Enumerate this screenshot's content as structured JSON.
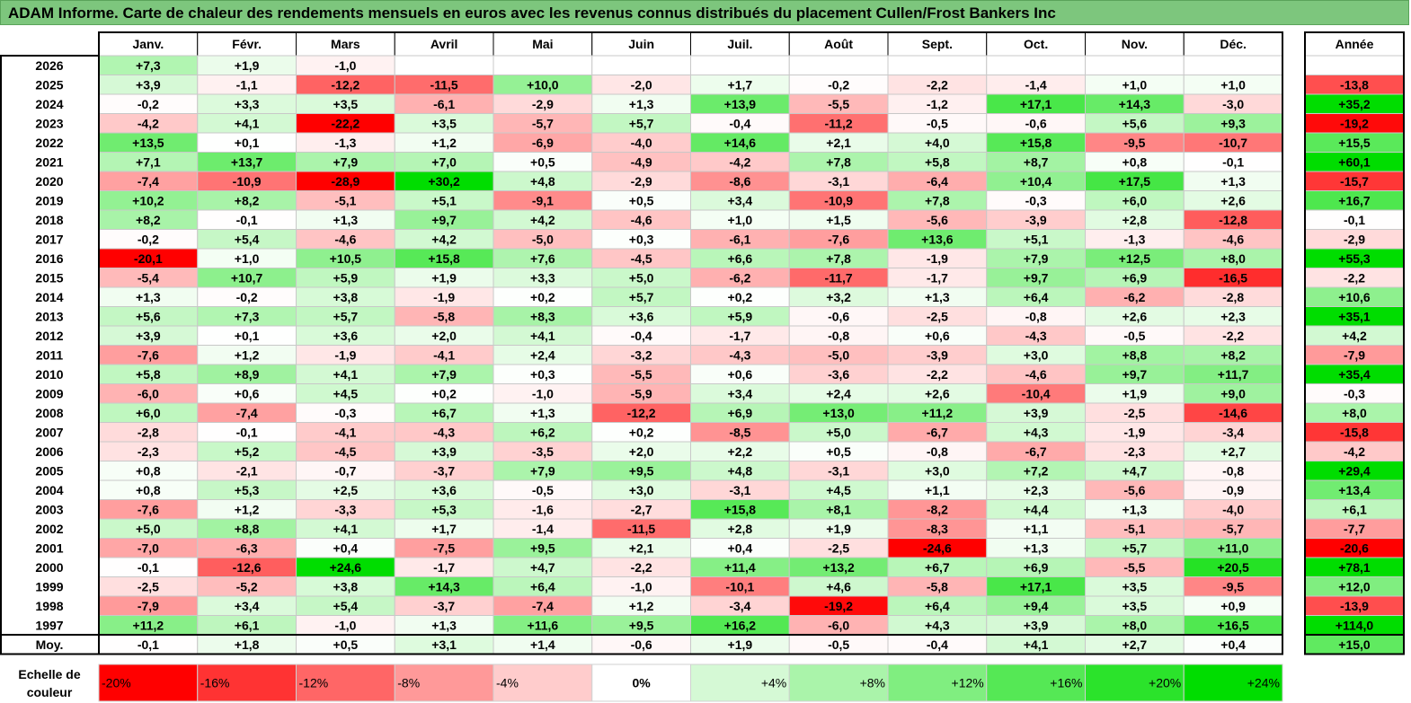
{
  "title": "ADAM Informe. Carte de chaleur des rendements mensuels en euros avec les revenus connus distribués du placement Cullen/Frost Bankers Inc",
  "chart_data": {
    "type": "heatmap",
    "title": "ADAM Informe. Carte de chaleur des rendements mensuels en euros avec les revenus connus distribués du placement Cullen/Frost Bankers Inc",
    "columns": [
      "Janv.",
      "Févr.",
      "Mars",
      "Avril",
      "Mai",
      "Juin",
      "Juil.",
      "Août",
      "Sept.",
      "Oct.",
      "Nov.",
      "Déc."
    ],
    "year_column_label": "Année",
    "rows": [
      {
        "label": "2026",
        "values": [
          7.3,
          1.9,
          -1.0,
          null,
          null,
          null,
          null,
          null,
          null,
          null,
          null,
          null
        ],
        "year": null
      },
      {
        "label": "2025",
        "values": [
          3.9,
          -1.1,
          -12.2,
          -11.5,
          10.0,
          -2.0,
          1.7,
          -0.2,
          -2.2,
          -1.4,
          1.0,
          1.0
        ],
        "year": -13.8
      },
      {
        "label": "2024",
        "values": [
          -0.2,
          3.3,
          3.5,
          -6.1,
          -2.9,
          1.3,
          13.9,
          -5.5,
          -1.2,
          17.1,
          14.3,
          -3.0
        ],
        "year": 35.2
      },
      {
        "label": "2023",
        "values": [
          -4.2,
          4.1,
          -22.2,
          3.5,
          -5.7,
          5.7,
          -0.4,
          -11.2,
          -0.5,
          -0.6,
          5.6,
          9.3
        ],
        "year": -19.2
      },
      {
        "label": "2022",
        "values": [
          13.5,
          0.1,
          -1.3,
          1.2,
          -6.9,
          -4.0,
          14.6,
          2.1,
          4.0,
          15.8,
          -9.5,
          -10.7
        ],
        "year": 15.5
      },
      {
        "label": "2021",
        "values": [
          7.1,
          13.7,
          7.9,
          7.0,
          0.5,
          -4.9,
          -4.2,
          7.8,
          5.8,
          8.7,
          0.8,
          -0.1
        ],
        "year": 60.1
      },
      {
        "label": "2020",
        "values": [
          -7.4,
          -10.9,
          -28.9,
          30.2,
          4.8,
          -2.9,
          -8.6,
          -3.1,
          -6.4,
          10.4,
          17.5,
          1.3
        ],
        "year": -15.7
      },
      {
        "label": "2019",
        "values": [
          10.2,
          8.2,
          -5.1,
          5.1,
          -9.1,
          0.5,
          3.4,
          -10.9,
          7.8,
          -0.3,
          6.0,
          2.6
        ],
        "year": 16.7
      },
      {
        "label": "2018",
        "values": [
          8.2,
          -0.1,
          1.3,
          9.7,
          4.2,
          -4.6,
          1.0,
          1.5,
          -5.6,
          -3.9,
          2.8,
          -12.8
        ],
        "year": -0.1
      },
      {
        "label": "2017",
        "values": [
          -0.2,
          5.4,
          -4.6,
          4.2,
          -5.0,
          0.3,
          -6.1,
          -7.6,
          13.6,
          5.1,
          -1.3,
          -4.6
        ],
        "year": -2.9
      },
      {
        "label": "2016",
        "values": [
          -20.1,
          1.0,
          10.5,
          15.8,
          7.6,
          -4.5,
          6.6,
          7.8,
          -1.9,
          7.9,
          12.5,
          8.0
        ],
        "year": 55.3
      },
      {
        "label": "2015",
        "values": [
          -5.4,
          10.7,
          5.9,
          1.9,
          3.3,
          5.0,
          -6.2,
          -11.7,
          -1.7,
          9.7,
          6.9,
          -16.5
        ],
        "year": -2.2
      },
      {
        "label": "2014",
        "values": [
          1.3,
          -0.2,
          3.8,
          -1.9,
          0.2,
          5.7,
          0.2,
          3.2,
          1.3,
          6.4,
          -6.2,
          -2.8
        ],
        "year": 10.6
      },
      {
        "label": "2013",
        "values": [
          5.6,
          7.3,
          5.7,
          -5.8,
          8.3,
          3.6,
          5.9,
          -0.6,
          -2.5,
          -0.8,
          2.6,
          2.3
        ],
        "year": 35.1
      },
      {
        "label": "2012",
        "values": [
          3.9,
          0.1,
          3.6,
          2.0,
          4.1,
          -0.4,
          -1.7,
          -0.8,
          0.6,
          -4.3,
          -0.5,
          -2.2
        ],
        "year": 4.2
      },
      {
        "label": "2011",
        "values": [
          -7.6,
          1.2,
          -1.9,
          -4.1,
          2.4,
          -3.2,
          -4.3,
          -5.0,
          -3.9,
          3.0,
          8.8,
          8.2
        ],
        "year": -7.9
      },
      {
        "label": "2010",
        "values": [
          5.8,
          8.9,
          4.1,
          7.9,
          0.3,
          -5.5,
          0.6,
          -3.6,
          -2.2,
          -4.6,
          9.7,
          11.7
        ],
        "year": 35.4
      },
      {
        "label": "2009",
        "values": [
          -6.0,
          0.6,
          4.5,
          0.2,
          -1.0,
          -5.9,
          3.4,
          2.4,
          2.6,
          -10.4,
          1.9,
          9.0
        ],
        "year": -0.3
      },
      {
        "label": "2008",
        "values": [
          6.0,
          -7.4,
          -0.3,
          6.7,
          1.3,
          -12.2,
          6.9,
          13.0,
          11.2,
          3.9,
          -2.5,
          -14.6
        ],
        "year": 8.0
      },
      {
        "label": "2007",
        "values": [
          -2.8,
          -0.1,
          -4.1,
          -4.3,
          6.2,
          0.2,
          -8.5,
          5.0,
          -6.7,
          4.3,
          -1.9,
          -3.4
        ],
        "year": -15.8
      },
      {
        "label": "2006",
        "values": [
          -2.3,
          5.2,
          -4.5,
          3.9,
          -3.5,
          2.0,
          2.2,
          0.5,
          -0.8,
          -6.7,
          -2.3,
          2.7
        ],
        "year": -4.2
      },
      {
        "label": "2005",
        "values": [
          0.8,
          -2.1,
          -0.7,
          -3.7,
          7.9,
          9.5,
          4.8,
          -3.1,
          3.0,
          7.2,
          4.7,
          -0.8
        ],
        "year": 29.4
      },
      {
        "label": "2004",
        "values": [
          0.8,
          5.3,
          2.5,
          3.6,
          -0.5,
          3.0,
          -3.1,
          4.5,
          1.1,
          2.3,
          -5.6,
          -0.9
        ],
        "year": 13.4
      },
      {
        "label": "2003",
        "values": [
          -7.6,
          1.2,
          -3.3,
          5.3,
          -1.6,
          -2.7,
          15.8,
          8.1,
          -8.2,
          4.4,
          1.3,
          -4.0
        ],
        "year": 6.1
      },
      {
        "label": "2002",
        "values": [
          5.0,
          8.8,
          4.1,
          1.7,
          -1.4,
          -11.5,
          2.8,
          1.9,
          -8.3,
          1.1,
          -5.1,
          -5.7
        ],
        "year": -7.7
      },
      {
        "label": "2001",
        "values": [
          -7.0,
          -6.3,
          0.4,
          -7.5,
          9.5,
          2.1,
          0.4,
          -2.5,
          -24.6,
          1.3,
          5.7,
          11.0
        ],
        "year": -20.6
      },
      {
        "label": "2000",
        "values": [
          -0.1,
          -12.6,
          24.6,
          -1.7,
          4.7,
          -2.2,
          11.4,
          13.2,
          6.7,
          6.9,
          -5.5,
          20.5
        ],
        "year": 78.1
      },
      {
        "label": "1999",
        "values": [
          -2.5,
          -5.2,
          3.8,
          14.3,
          6.4,
          -1.0,
          -10.1,
          4.6,
          -5.8,
          17.1,
          3.5,
          -9.5
        ],
        "year": 12.0
      },
      {
        "label": "1998",
        "values": [
          -7.9,
          3.4,
          5.4,
          -3.7,
          -7.4,
          1.2,
          -3.4,
          -19.2,
          6.4,
          9.4,
          3.5,
          0.9
        ],
        "year": -13.9
      },
      {
        "label": "1997",
        "values": [
          11.2,
          6.1,
          -1.0,
          1.3,
          11.6,
          9.5,
          16.2,
          -6.0,
          4.3,
          3.9,
          8.0,
          16.5
        ],
        "year": 114.0
      }
    ],
    "average": {
      "label": "Moy.",
      "values": [
        -0.1,
        1.8,
        0.5,
        3.1,
        1.4,
        -0.6,
        1.9,
        -0.5,
        -0.4,
        4.1,
        2.7,
        0.4
      ],
      "year": 15.0
    },
    "color_scale": {
      "label_line1": "Echelle de",
      "label_line2": "couleur",
      "stops": [
        {
          "label": "-20%",
          "value": -20
        },
        {
          "label": "-16%",
          "value": -16
        },
        {
          "label": "-12%",
          "value": -12
        },
        {
          "label": "-8%",
          "value": -8
        },
        {
          "label": "-4%",
          "value": -4
        },
        {
          "label": "0%",
          "value": 0
        },
        {
          "label": "+4%",
          "value": 4
        },
        {
          "label": "+8%",
          "value": 8
        },
        {
          "label": "+12%",
          "value": 12
        },
        {
          "label": "+16%",
          "value": 16
        },
        {
          "label": "+20%",
          "value": 20
        },
        {
          "label": "+24%",
          "value": 24
        }
      ],
      "negative_color": "#ff0000",
      "neutral_color": "#ffffff",
      "positive_color": "#00dd00"
    },
    "title_bar_color": "#7dc67d"
  }
}
